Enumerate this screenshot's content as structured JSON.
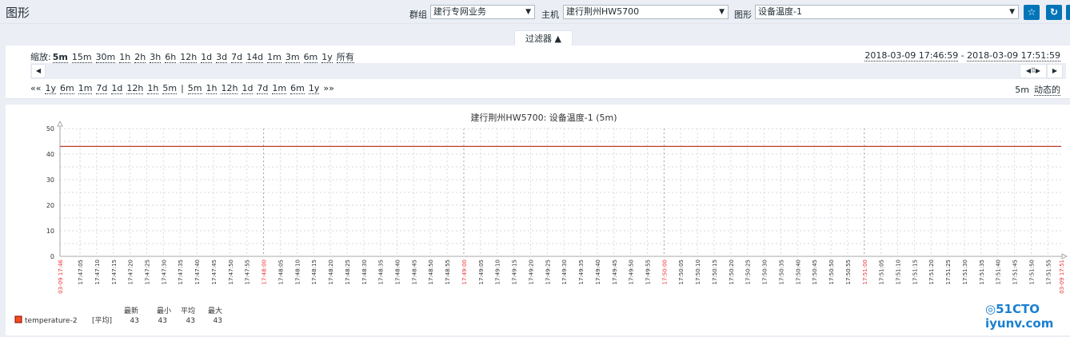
{
  "header": {
    "title": "图形",
    "group_label": "群组",
    "group_value": "建行专网业务",
    "host_label": "主机",
    "host_value": "建行荆州HW5700",
    "graph_label": "图形",
    "graph_value": "设备温度-1",
    "icons": [
      "star-icon",
      "refresh-icon",
      "fullscreen-icon"
    ]
  },
  "filter": {
    "tab_label": "过滤器 ▲",
    "zoom_label": "缩放:",
    "zoom_options": [
      "5m",
      "15m",
      "30m",
      "1h",
      "2h",
      "3h",
      "6h",
      "12h",
      "1d",
      "3d",
      "7d",
      "14d",
      "1m",
      "3m",
      "6m",
      "1y",
      "所有"
    ],
    "zoom_selected": "5m",
    "time_from": "2018-03-09 17:46:59",
    "time_sep": "-",
    "time_to": "2018-03-09 17:51:59",
    "nav_back": [
      "««",
      "1y",
      "6m",
      "1m",
      "7d",
      "1d",
      "12h",
      "1h",
      "5m"
    ],
    "nav_sep": "|",
    "nav_fwd": [
      "5m",
      "1h",
      "12h",
      "1d",
      "7d",
      "1m",
      "6m",
      "1y",
      "»»"
    ],
    "period": "5m",
    "dynamic": "动态的"
  },
  "chart_data": {
    "type": "line",
    "title": "建行荆州HW5700: 设备温度-1 (5m)",
    "ylim": [
      0,
      50
    ],
    "yticks": [
      0,
      10,
      20,
      30,
      40,
      50
    ],
    "x_start": "03-09 17:46",
    "x_end": "03-09 17:51",
    "xlim": [
      "17:46:59",
      "17:51:59"
    ],
    "grid": true,
    "xticks": [
      "17:47:05",
      "17:47:10",
      "17:47:15",
      "17:47:20",
      "17:47:25",
      "17:47:30",
      "17:47:35",
      "17:47:40",
      "17:47:45",
      "17:47:50",
      "17:47:55",
      "17:48:00",
      "17:48:05",
      "17:48:10",
      "17:48:15",
      "17:48:20",
      "17:48:25",
      "17:48:30",
      "17:48:35",
      "17:48:40",
      "17:48:45",
      "17:48:50",
      "17:48:55",
      "17:49:00",
      "17:49:05",
      "17:49:10",
      "17:49:15",
      "17:49:20",
      "17:49:25",
      "17:49:30",
      "17:49:35",
      "17:49:40",
      "17:49:45",
      "17:49:50",
      "17:49:55",
      "17:50:00",
      "17:50:05",
      "17:50:10",
      "17:50:15",
      "17:50:20",
      "17:50:25",
      "17:50:30",
      "17:50:35",
      "17:50:40",
      "17:50:45",
      "17:50:50",
      "17:50:55",
      "17:51:00",
      "17:51:05",
      "17:51:10",
      "17:51:15",
      "17:51:20",
      "17:51:25",
      "17:51:30",
      "17:51:35",
      "17:51:40",
      "17:51:45",
      "17:51:50",
      "17:51:55"
    ],
    "series": [
      {
        "name": "temperature-2",
        "color": "#c0392b",
        "legend_color": "#f24f1d",
        "x": [
          "17:46:59",
          "17:51:59"
        ],
        "values": [
          43,
          43
        ]
      }
    ],
    "legend": {
      "headers": [
        "最新",
        "最小",
        "平均",
        "最大"
      ],
      "func": "[平均]",
      "last": "43",
      "min": "43",
      "avg": "43",
      "max": "43"
    }
  },
  "watermark": "51CTO博客 运维网 iyunv.com"
}
